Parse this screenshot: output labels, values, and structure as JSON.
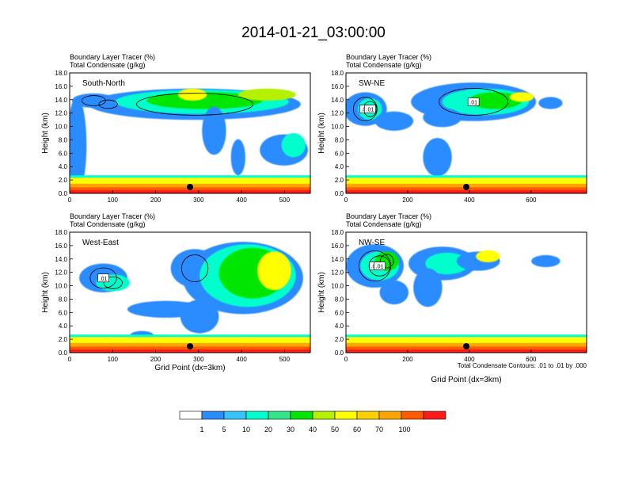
{
  "title": "2014-01-21_03:00:00",
  "panel_subtitle_1": "Boundary Layer Tracer   (%)",
  "panel_subtitle_2": "Total Condensate   (g/kg)",
  "ylabel": "Height (km)",
  "xlabel": "Grid Point (dx=3km)",
  "contour_note": "Total Condensate Contours: .01 to .01 by .000",
  "contour_label": ".01",
  "colors": {
    "levels": [
      "#ffffff",
      "#2b8cff",
      "#35c4ff",
      "#00ffcc",
      "#33e58a",
      "#00e600",
      "#b4f000",
      "#ffff00",
      "#ffd000",
      "#ffa500",
      "#ff5a00",
      "#ff1a1a"
    ]
  },
  "chart_data": [
    {
      "type": "heatmap",
      "name": "South-North",
      "xlim": [
        0,
        560
      ],
      "ylim": [
        0,
        18
      ],
      "x_ticks": [
        0,
        100,
        200,
        300,
        400,
        500
      ],
      "y_ticks": [
        "0.0",
        "2.0",
        "4.0",
        "6.0",
        "8.0",
        "10.0",
        "12.0",
        "14.0",
        "16.0",
        "18.0"
      ],
      "marker_x": 280,
      "contour_labels": []
    },
    {
      "type": "heatmap",
      "name": "SW-NE",
      "xlim": [
        0,
        780
      ],
      "ylim": [
        0,
        18
      ],
      "x_ticks": [
        0,
        200,
        400,
        600
      ],
      "y_ticks": [
        "0.0",
        "2.0",
        "4.0",
        "6.0",
        "8.0",
        "10.0",
        "12.0",
        "14.0",
        "16.0",
        "18.0"
      ],
      "marker_x": 390,
      "contour_labels": [
        ".01",
        ".01",
        ".01"
      ]
    },
    {
      "type": "heatmap",
      "name": "West-East",
      "xlim": [
        0,
        560
      ],
      "ylim": [
        0,
        18
      ],
      "x_ticks": [
        0,
        100,
        200,
        300,
        400,
        500
      ],
      "y_ticks": [
        "0.0",
        "2.0",
        "4.0",
        "6.0",
        "8.0",
        "10.0",
        "12.0",
        "14.0",
        "16.0",
        "18.0"
      ],
      "marker_x": 280,
      "contour_labels": [
        ".01"
      ]
    },
    {
      "type": "heatmap",
      "name": "NW-SE",
      "xlim": [
        0,
        780
      ],
      "ylim": [
        0,
        18
      ],
      "x_ticks": [
        0,
        200,
        400,
        600
      ],
      "y_ticks": [
        "0.0",
        "2.0",
        "4.0",
        "6.0",
        "8.0",
        "10.0",
        "12.0",
        "14.0",
        "16.0",
        "18.0"
      ],
      "marker_x": 390,
      "contour_labels": [
        ".01",
        ".01"
      ]
    }
  ],
  "colorbar": {
    "labels": [
      "1",
      "5",
      "10",
      "20",
      "30",
      "40",
      "50",
      "60",
      "70",
      "100"
    ]
  }
}
